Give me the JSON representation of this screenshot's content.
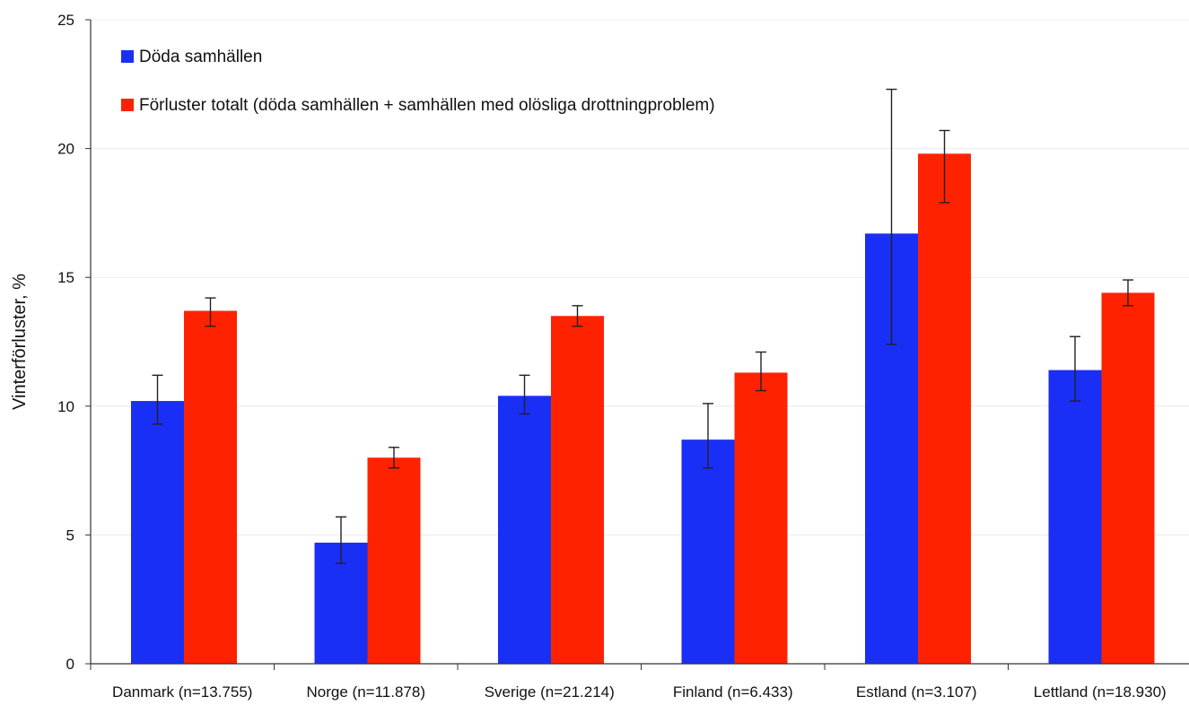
{
  "chart_data": {
    "type": "bar",
    "title": "",
    "xlabel": "",
    "ylabel": "Vinterförluster, %",
    "ylim": [
      0,
      25
    ],
    "yticks": [
      0,
      5,
      10,
      15,
      20,
      25
    ],
    "grid": true,
    "legend_position": "top-left",
    "categories": [
      "Danmark (n=13.755)",
      "Norge (n=11.878)",
      "Sverige (n=21.214)",
      "Finland (n=6.433)",
      "Estland (n=3.107)",
      "Lettland (n=18.930)"
    ],
    "series": [
      {
        "name": "Döda samhällen",
        "color": "#1a2ff5",
        "values": [
          10.2,
          4.7,
          10.4,
          8.7,
          16.7,
          11.4
        ],
        "error_low": [
          9.3,
          3.9,
          9.7,
          7.6,
          12.4,
          10.2
        ],
        "error_high": [
          11.2,
          5.7,
          11.2,
          10.1,
          22.3,
          12.7
        ]
      },
      {
        "name": "Förluster totalt (döda samhällen + samhällen med olösliga drottningproblem)",
        "color": "#ff2200",
        "values": [
          13.7,
          8.0,
          13.5,
          11.3,
          19.8,
          14.4
        ],
        "error_low": [
          13.1,
          7.6,
          13.1,
          10.6,
          17.9,
          13.9
        ],
        "error_high": [
          14.2,
          8.4,
          13.9,
          12.1,
          20.7,
          14.9
        ]
      }
    ]
  }
}
